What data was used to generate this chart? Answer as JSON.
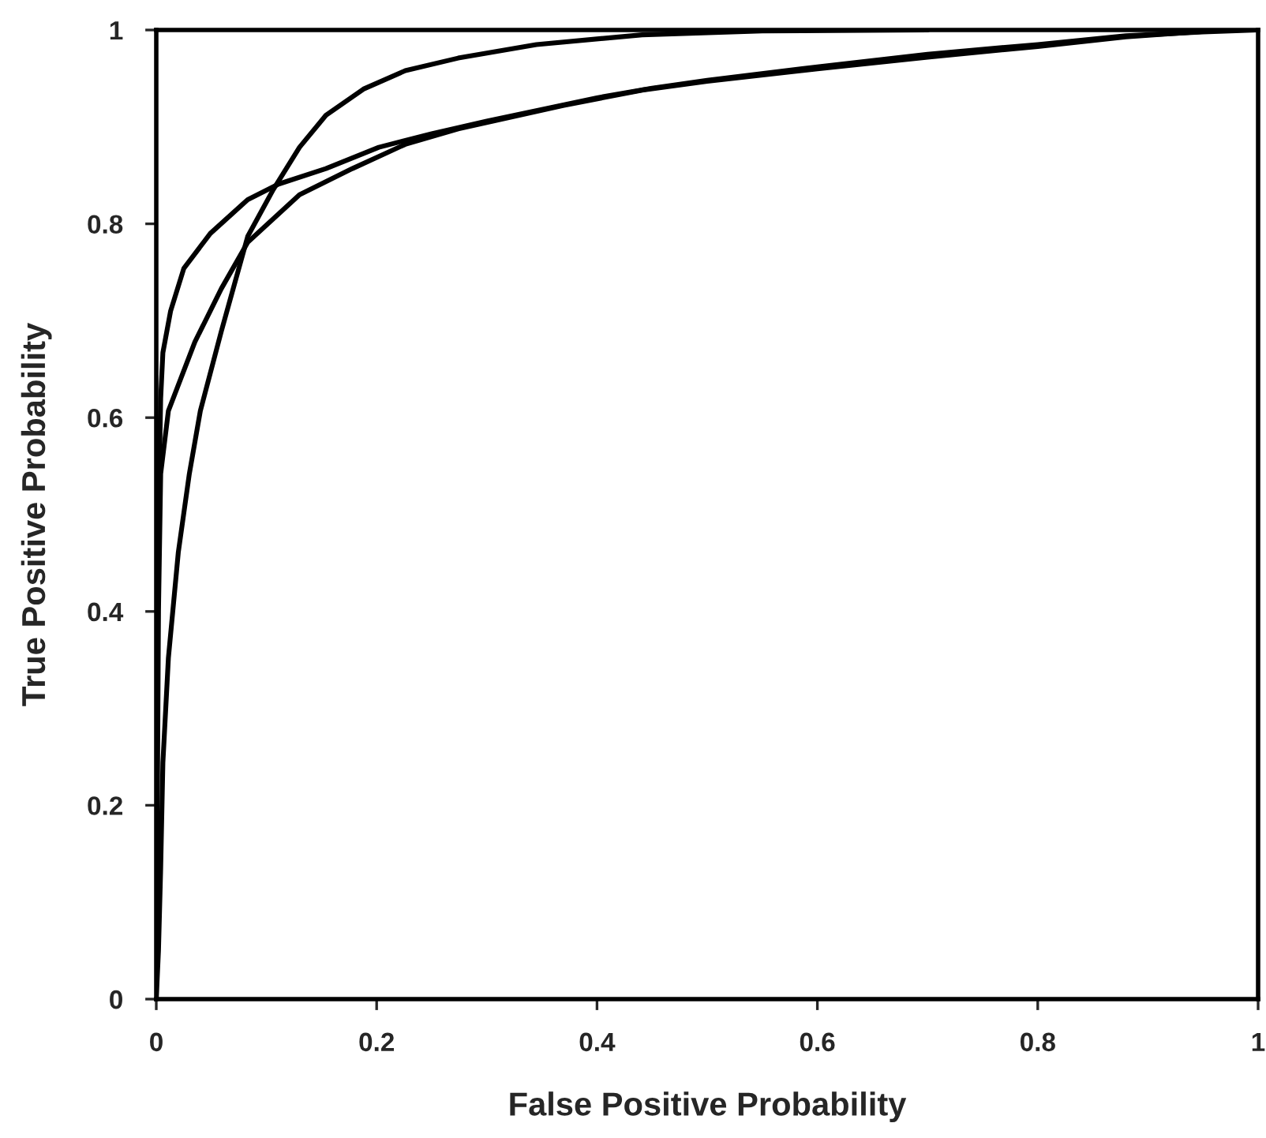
{
  "chart_data": {
    "type": "line",
    "xlabel": "False Positive Probability",
    "ylabel": "True Positive Probability",
    "xlim": [
      0,
      1
    ],
    "ylim": [
      0,
      1
    ],
    "xticks": [
      0,
      0.2,
      0.4,
      0.6,
      0.8,
      1
    ],
    "yticks": [
      0,
      0.2,
      0.4,
      0.6,
      0.8,
      1
    ],
    "grid": false,
    "legend": false,
    "marker": "none",
    "line_style": "solid",
    "series": [
      {
        "color": "#000000",
        "x": [
          0.001,
          0.002,
          0.004,
          0.006,
          0.013,
          0.025,
          0.049,
          0.083,
          0.111,
          0.154,
          0.202,
          0.25,
          0.3,
          0.35,
          0.4,
          0.45,
          0.5,
          0.6,
          0.7,
          0.8,
          0.88,
          0.95,
          1
        ],
        "values": [
          0.3,
          0.5,
          0.62,
          0.667,
          0.71,
          0.754,
          0.79,
          0.825,
          0.841,
          0.857,
          0.879,
          0.893,
          0.906,
          0.918,
          0.93,
          0.94,
          0.948,
          0.962,
          0.975,
          0.985,
          0.994,
          0.998,
          1
        ]
      },
      {
        "color": "#000000",
        "x": [
          0,
          0.001,
          0.002,
          0.004,
          0.011,
          0.035,
          0.059,
          0.083,
          0.13,
          0.178,
          0.226,
          0.274,
          0.369,
          0.441,
          0.5,
          0.6,
          0.7,
          0.8,
          0.88,
          0.97
        ],
        "values": [
          0,
          0.2,
          0.4,
          0.542,
          0.607,
          0.678,
          0.733,
          0.781,
          0.83,
          0.857,
          0.882,
          0.898,
          0.922,
          0.938,
          0.947,
          0.96,
          0.972,
          0.983,
          0.993,
          1
        ]
      },
      {
        "color": "#000000",
        "x": [
          0,
          0.002,
          0.004,
          0.006,
          0.011,
          0.02,
          0.03,
          0.04,
          0.059,
          0.083,
          0.106,
          0.13,
          0.154,
          0.188,
          0.226,
          0.274,
          0.345,
          0.441,
          0.55,
          0.7
        ],
        "values": [
          0,
          0.05,
          0.135,
          0.244,
          0.352,
          0.461,
          0.542,
          0.607,
          0.689,
          0.787,
          0.835,
          0.879,
          0.912,
          0.939,
          0.958,
          0.971,
          0.985,
          0.995,
          0.999,
          1
        ]
      }
    ]
  }
}
